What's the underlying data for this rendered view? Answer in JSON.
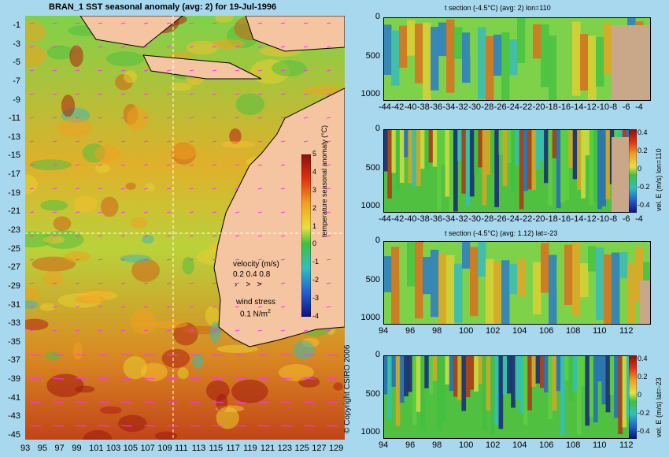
{
  "map": {
    "title": "BRAN_1 SST seasonal anomaly (avg: 2) for 19-Jul-1996",
    "y_ticks": [
      "-1",
      "-3",
      "-5",
      "-7",
      "-9",
      "-11",
      "-13",
      "-15",
      "-17",
      "-19",
      "-21",
      "-23",
      "-25",
      "-27",
      "-29",
      "-31",
      "-33",
      "-35",
      "-37",
      "-39",
      "-41",
      "-43",
      "-45"
    ],
    "x_ticks": [
      "93",
      "95",
      "97",
      "99",
      "101",
      "103",
      "105",
      "107",
      "109",
      "111",
      "113",
      "115",
      "117",
      "119",
      "121",
      "123",
      "125",
      "127",
      "129"
    ],
    "colorbar_label": "temperature seasonal anomaly (°C)",
    "colorbar_ticks": [
      "5",
      "4",
      "3",
      "2",
      "1",
      "0",
      "-1",
      "-2",
      "-3",
      "-4"
    ],
    "velocity_label": "velocity (m/s)",
    "velocity_values": "0.2 0.4 0.8",
    "wind_label": "wind stress",
    "wind_value": "0.1 N/m",
    "wind_exp": "2",
    "copyright": "© Copyright CSIRO 2006"
  },
  "panels": [
    {
      "title": "t section (-4.5°C) (avg: 2) lon=110",
      "side_label": "",
      "y_ticks": [
        "0",
        "500",
        "1000"
      ],
      "x_ticks": [
        "-44",
        "-42",
        "-40",
        "-38",
        "-36",
        "-34",
        "-32",
        "-30",
        "-28",
        "-26",
        "-24",
        "-22",
        "-20",
        "-18",
        "-16",
        "-14",
        "-12",
        "-10",
        "-8",
        "-6",
        "-4"
      ]
    },
    {
      "title": "",
      "side_label": "vel. E (m/s) lon=110",
      "y_ticks": [
        "0",
        "500",
        "1000"
      ],
      "x_ticks": [
        "-44",
        "-42",
        "-40",
        "-38",
        "-36",
        "-34",
        "-32",
        "-30",
        "-28",
        "-26",
        "-24",
        "-22",
        "-20",
        "-18",
        "-16",
        "-14",
        "-12",
        "-10",
        "-8",
        "-6",
        "-4"
      ],
      "cbar_ticks": [
        "0.4",
        "0.2",
        "0",
        "-0.2",
        "-0.4"
      ]
    },
    {
      "title": "t section (-4.5°C) (avg: 1.12) lat=-23",
      "side_label": "",
      "y_ticks": [
        "0",
        "500",
        "1000"
      ],
      "x_ticks": [
        "94",
        "96",
        "98",
        "100",
        "102",
        "104",
        "106",
        "108",
        "110",
        "112"
      ]
    },
    {
      "title": "",
      "side_label": "vel. E (m/s) lat=-23",
      "y_ticks": [
        "0",
        "500",
        "1000"
      ],
      "x_ticks": [
        "94",
        "96",
        "98",
        "100",
        "102",
        "104",
        "106",
        "108",
        "110",
        "112"
      ],
      "cbar_ticks": [
        "0.4",
        "0.2",
        "0",
        "-0.2",
        "-0.4"
      ]
    }
  ],
  "chart_data": [
    {
      "type": "heatmap",
      "title": "BRAN_1 SST seasonal anomaly (avg: 2) for 19-Jul-1996",
      "xlim": [
        93,
        130
      ],
      "ylim": [
        -45,
        0
      ],
      "zlim": [
        -4,
        5
      ],
      "colorbar_label": "temperature seasonal anomaly (°C)"
    },
    {
      "type": "heatmap",
      "title": "t section (-4.5°C) (avg: 2) lon=110",
      "xlim": [
        -45,
        -3
      ],
      "ylim": [
        1050,
        0
      ]
    },
    {
      "type": "heatmap",
      "xlim": [
        -45,
        -3
      ],
      "ylim": [
        1050,
        0
      ],
      "zlim": [
        -0.4,
        0.4
      ],
      "colorbar_label": "vel. E (m/s) lon=110"
    },
    {
      "type": "heatmap",
      "title": "t section (-4.5°C) (avg: 1.12) lat=-23",
      "xlim": [
        93,
        113.5
      ],
      "ylim": [
        1050,
        0
      ]
    },
    {
      "type": "heatmap",
      "xlim": [
        93,
        113.5
      ],
      "ylim": [
        1050,
        0
      ],
      "zlim": [
        -0.4,
        0.4
      ],
      "colorbar_label": "vel. E (m/s) lat=-23"
    }
  ]
}
